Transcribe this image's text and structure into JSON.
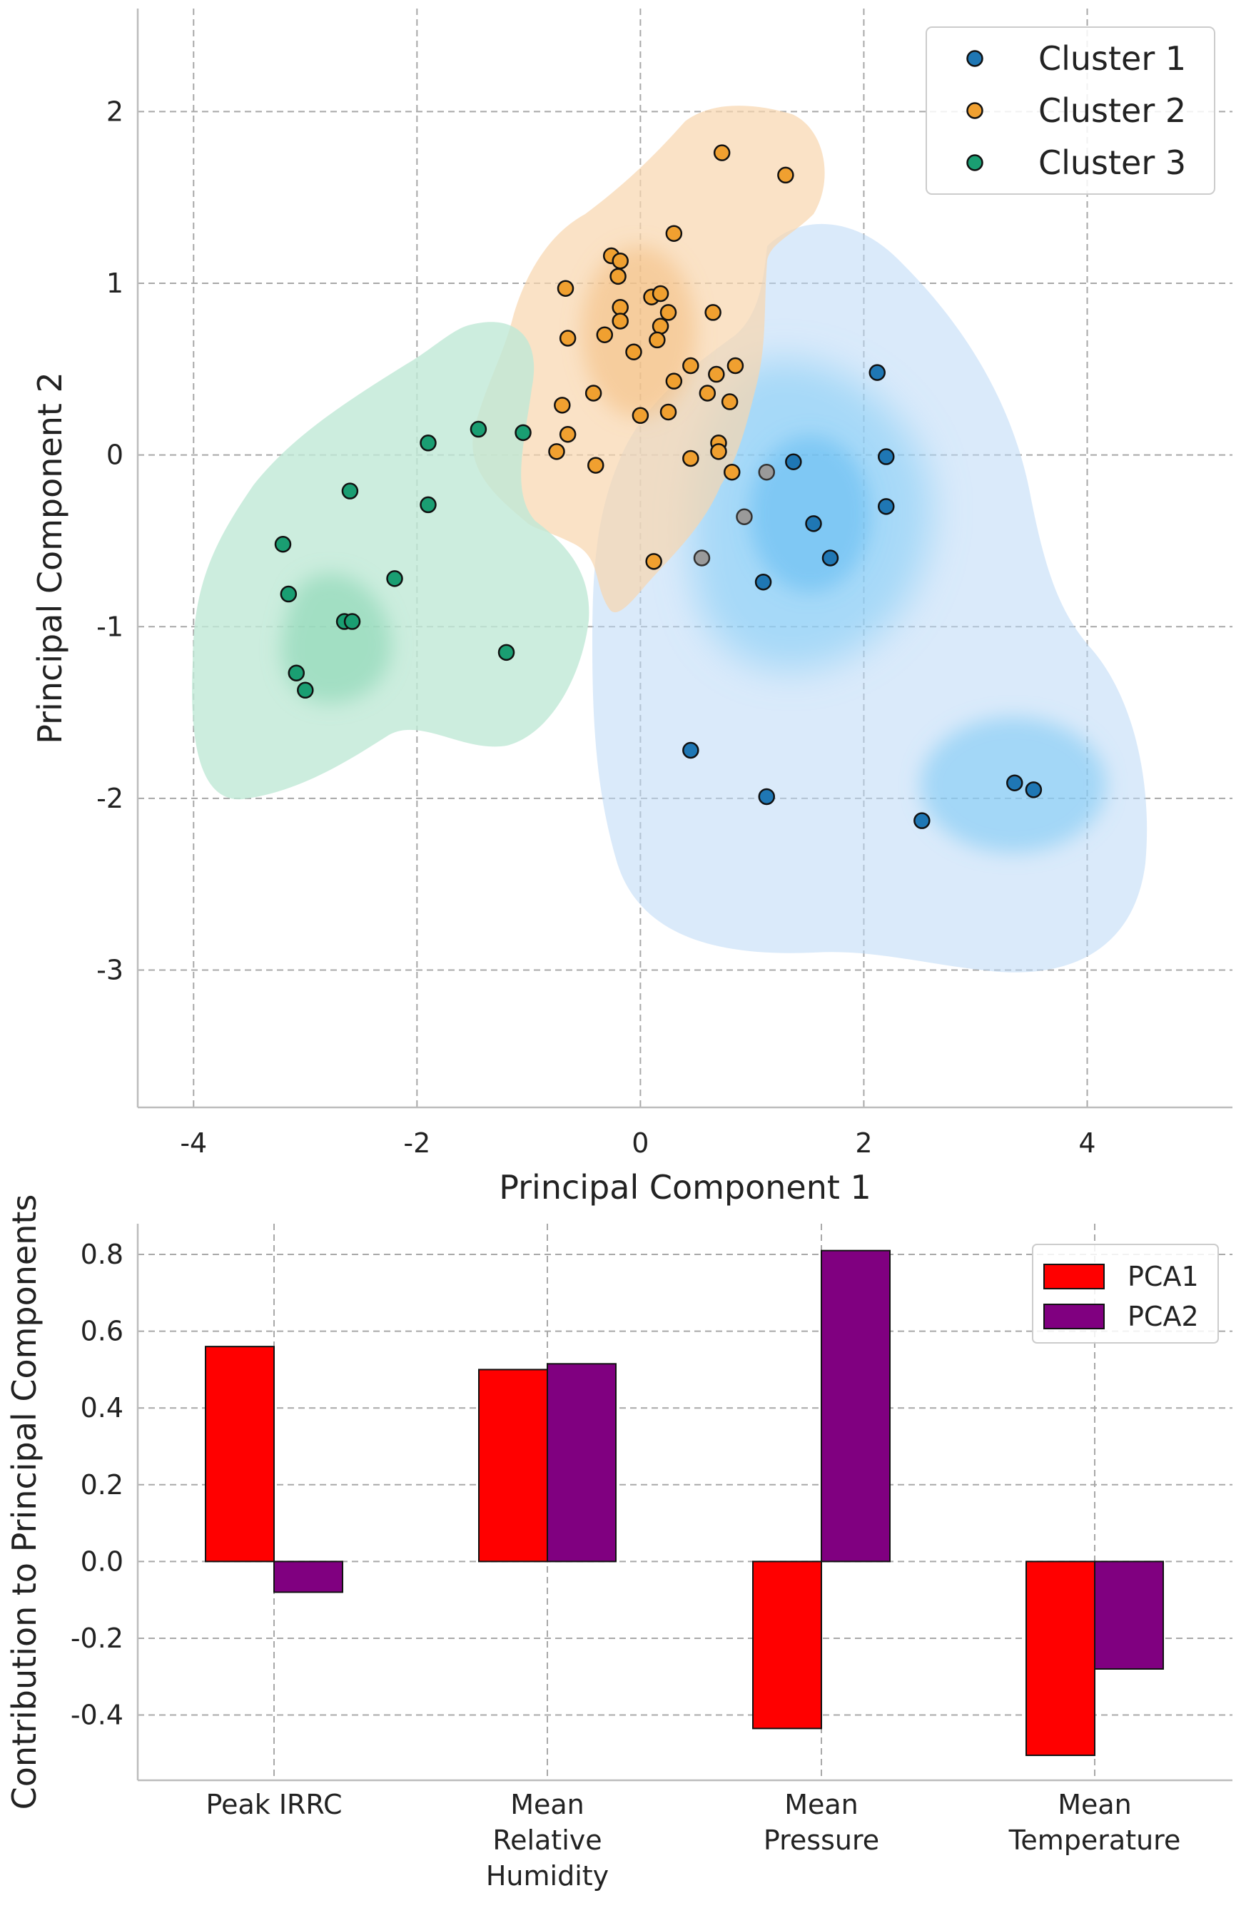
{
  "chart_data": [
    {
      "type": "scatter",
      "title": "",
      "xlabel": "Principal Component 1",
      "ylabel": "Principal Component 2",
      "xlim": [
        -4.5,
        5.3
      ],
      "ylim": [
        -3.8,
        2.6
      ],
      "xticks": [
        -4,
        -2,
        0,
        2,
        4
      ],
      "yticks": [
        2,
        1,
        0,
        -1,
        -2,
        -3
      ],
      "xtick_labels": [
        "-4",
        "-2",
        "0",
        "2",
        "4"
      ],
      "ytick_labels": [
        "2",
        "1",
        "0",
        "-1",
        "-2",
        "-3"
      ],
      "grid": true,
      "legend_position": "top-right",
      "series": [
        {
          "name": "Cluster 1",
          "color": "#1f77b4",
          "density_color": "#5ec2f7",
          "points": [
            [
              2.12,
              0.48
            ],
            [
              2.2,
              -0.01
            ],
            [
              2.2,
              -0.3
            ],
            [
              1.37,
              -0.04
            ],
            [
              1.55,
              -0.4
            ],
            [
              1.7,
              -0.6
            ],
            [
              1.1,
              -0.74
            ],
            [
              0.45,
              -1.72
            ],
            [
              1.13,
              -1.99
            ],
            [
              2.52,
              -2.13
            ],
            [
              3.35,
              -1.91
            ],
            [
              3.52,
              -1.95
            ]
          ]
        },
        {
          "name": "Cluster 2",
          "color": "#f0a030",
          "density_color": "#f6b870",
          "points": [
            [
              0.73,
              1.76
            ],
            [
              1.3,
              1.63
            ],
            [
              0.3,
              1.29
            ],
            [
              -0.26,
              1.16
            ],
            [
              -0.18,
              1.13
            ],
            [
              -0.2,
              1.04
            ],
            [
              0.1,
              0.92
            ],
            [
              0.18,
              0.94
            ],
            [
              -0.67,
              0.97
            ],
            [
              0.25,
              0.83
            ],
            [
              0.65,
              0.83
            ],
            [
              -0.18,
              0.86
            ],
            [
              -0.18,
              0.78
            ],
            [
              0.18,
              0.75
            ],
            [
              0.15,
              0.67
            ],
            [
              -0.32,
              0.7
            ],
            [
              -0.65,
              0.68
            ],
            [
              -0.06,
              0.6
            ],
            [
              0.45,
              0.52
            ],
            [
              0.85,
              0.52
            ],
            [
              0.68,
              0.47
            ],
            [
              0.3,
              0.43
            ],
            [
              0.6,
              0.36
            ],
            [
              0.8,
              0.31
            ],
            [
              -0.42,
              0.36
            ],
            [
              -0.7,
              0.29
            ],
            [
              0.25,
              0.25
            ],
            [
              0.0,
              0.23
            ],
            [
              -0.65,
              0.12
            ],
            [
              0.7,
              0.07
            ],
            [
              -0.75,
              0.02
            ],
            [
              0.7,
              0.02
            ],
            [
              0.45,
              -0.02
            ],
            [
              -0.4,
              -0.06
            ],
            [
              0.82,
              -0.1
            ],
            [
              0.12,
              -0.62
            ]
          ]
        },
        {
          "name": "Cluster 3",
          "color": "#1a9e72",
          "density_color": "#62d6a6",
          "points": [
            [
              -1.45,
              0.15
            ],
            [
              -1.05,
              0.13
            ],
            [
              -1.9,
              0.07
            ],
            [
              -2.6,
              -0.21
            ],
            [
              -1.9,
              -0.29
            ],
            [
              -3.2,
              -0.52
            ],
            [
              -2.2,
              -0.72
            ],
            [
              -3.15,
              -0.81
            ],
            [
              -2.65,
              -0.97
            ],
            [
              -2.58,
              -0.97
            ],
            [
              -1.2,
              -1.15
            ],
            [
              -3.08,
              -1.27
            ],
            [
              -3.0,
              -1.37
            ]
          ]
        }
      ],
      "grey_points": [
        [
          1.13,
          -0.1
        ],
        [
          0.93,
          -0.36
        ],
        [
          0.55,
          -0.6
        ]
      ]
    },
    {
      "type": "bar",
      "title": "",
      "xlabel": "",
      "ylabel": "Contribution to Principal Components",
      "ylim": [
        -0.57,
        0.88
      ],
      "yticks": [
        0.8,
        0.6,
        0.4,
        0.2,
        0.0,
        -0.2,
        -0.4
      ],
      "ytick_labels": [
        "0.8",
        "0.6",
        "0.4",
        "0.2",
        "0.0",
        "-0.2",
        "-0.4"
      ],
      "categories": [
        [
          "Peak IRRC"
        ],
        [
          "Mean",
          "Relative",
          "Humidity"
        ],
        [
          "Mean",
          "Pressure"
        ],
        [
          "Mean",
          "Temperature"
        ]
      ],
      "grid": true,
      "legend_position": "top-right",
      "series": [
        {
          "name": "PCA1",
          "color": "#ff0000",
          "values": [
            0.56,
            0.5,
            -0.435,
            -0.505
          ]
        },
        {
          "name": "PCA2",
          "color": "#800080",
          "values": [
            -0.08,
            0.515,
            0.81,
            -0.28
          ]
        }
      ]
    }
  ]
}
